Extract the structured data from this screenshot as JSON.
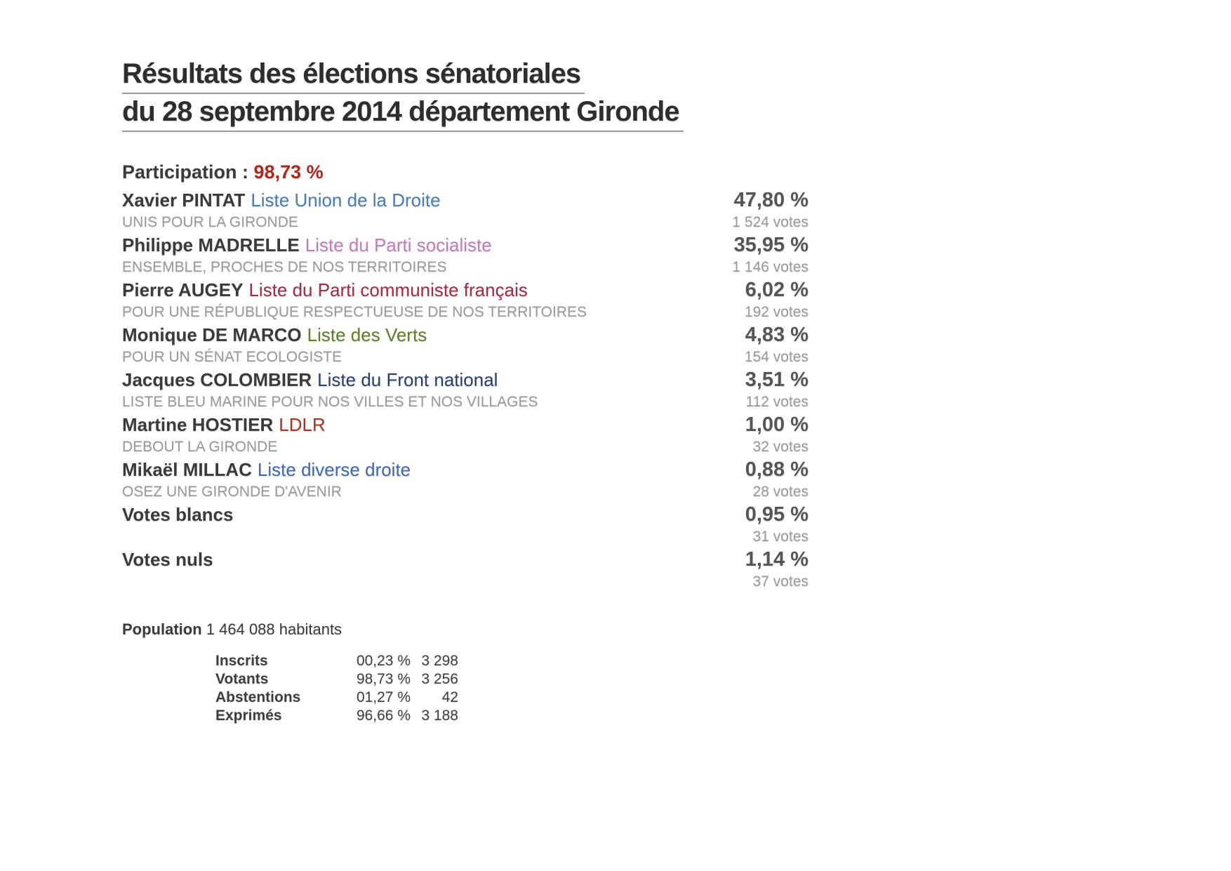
{
  "title": {
    "line1": "Résultats des élections sénatoriales",
    "line2": "du 28 septembre 2014 département Gironde"
  },
  "participation": {
    "label": "Participation :",
    "value": "98,73 %",
    "value_color": "#ad2a1c"
  },
  "results": [
    {
      "name": "Xavier PINTAT",
      "list": "Liste Union de la Droite",
      "list_color": "#4a7eb8",
      "slogan": "UNIS POUR LA GIRONDE",
      "percent": "47,80 %",
      "votes": "1 524 votes"
    },
    {
      "name": "Philippe MADRELLE",
      "list": "Liste du Parti socialiste",
      "list_color": "#c17ebd",
      "slogan": "ENSEMBLE, PROCHES DE NOS TERRITOIRES",
      "percent": "35,95 %",
      "votes": "1 146 votes"
    },
    {
      "name": "Pierre AUGEY",
      "list": "Liste du Parti communiste français",
      "list_color": "#a12c4c",
      "slogan": "POUR UNE RÉPUBLIQUE RESPECTUEUSE DE NOS TERRITOIRES",
      "percent": "6,02 %",
      "votes": "192 votes"
    },
    {
      "name": "Monique DE MARCO",
      "list": "Liste des Verts",
      "list_color": "#637d2b",
      "slogan": "POUR UN SÉNAT ECOLOGISTE",
      "percent": "4,83 %",
      "votes": "154 votes"
    },
    {
      "name": "Jacques COLOMBIER",
      "list": "Liste du Front national",
      "list_color": "#273f73",
      "slogan": "LISTE BLEU MARINE POUR NOS VILLES ET NOS VILLAGES",
      "percent": "3,51 %",
      "votes": "112 votes"
    },
    {
      "name": "Martine HOSTIER",
      "list": "LDLR",
      "list_color": "#a93522",
      "slogan": "DEBOUT LA GIRONDE",
      "percent": "1,00 %",
      "votes": "32 votes"
    },
    {
      "name": "Mikaël MILLAC",
      "list": "Liste diverse droite",
      "list_color": "#4168b4",
      "slogan": "OSEZ UNE GIRONDE D'AVENIR",
      "percent": "0,88 %",
      "votes": "28 votes"
    },
    {
      "name": "Votes blancs",
      "list": "",
      "list_color": "",
      "slogan": "",
      "percent": "0,95 %",
      "votes": "31 votes"
    },
    {
      "name": "Votes nuls",
      "list": "",
      "list_color": "",
      "slogan": "",
      "percent": "1,14 %",
      "votes": "37 votes"
    }
  ],
  "population": {
    "label": "Population",
    "value": "1 464 088 habitants"
  },
  "stats": {
    "rows": [
      {
        "label": "Inscrits",
        "percent": "00,23 %",
        "count": "3 298"
      },
      {
        "label": "Votants",
        "percent": "98,73 %",
        "count": "3 256"
      },
      {
        "label": "Abstentions",
        "percent": "01,27 %",
        "count": "42"
      },
      {
        "label": "Exprimés",
        "percent": "96,66 %",
        "count": "3 188"
      }
    ]
  }
}
